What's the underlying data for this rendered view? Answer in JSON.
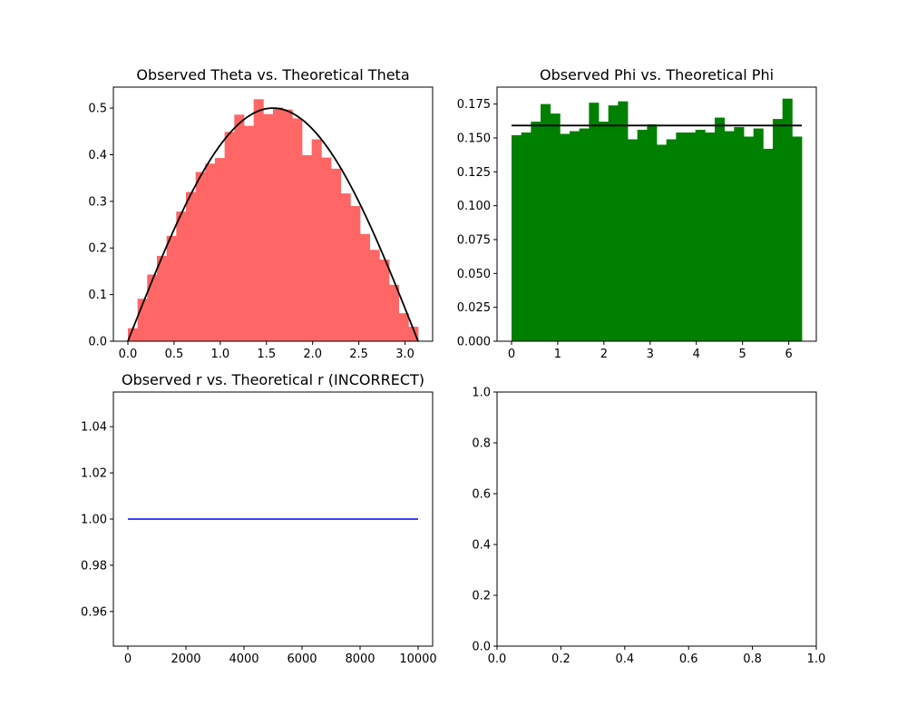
{
  "chart_data": [
    {
      "type": "bar",
      "title": "Observed Theta vs. Theoretical Theta",
      "xlabel": "",
      "ylabel": "",
      "xlim": [
        -0.157,
        3.299
      ],
      "ylim": [
        0,
        0.545
      ],
      "xticks": [
        0.0,
        0.5,
        1.0,
        1.5,
        2.0,
        2.5,
        3.0
      ],
      "xtick_labels": [
        "0.0",
        "0.5",
        "1.0",
        "1.5",
        "2.0",
        "2.5",
        "3.0"
      ],
      "yticks": [
        0.0,
        0.1,
        0.2,
        0.3,
        0.4,
        0.5
      ],
      "ytick_labels": [
        "0.0",
        "0.1",
        "0.2",
        "0.3",
        "0.4",
        "0.5"
      ],
      "grid": false,
      "bins": {
        "start": 0.0,
        "end": 3.1416,
        "values": [
          0.028,
          0.091,
          0.143,
          0.183,
          0.226,
          0.278,
          0.32,
          0.363,
          0.381,
          0.393,
          0.449,
          0.486,
          0.462,
          0.519,
          0.487,
          0.501,
          0.497,
          0.478,
          0.399,
          0.433,
          0.394,
          0.37,
          0.317,
          0.29,
          0.23,
          0.196,
          0.175,
          0.121,
          0.06,
          0.031
        ]
      },
      "bar_color": "#ff6666",
      "curve": {
        "type": "line",
        "function": "0.5*sin(x)",
        "x_range": [
          0.0,
          3.1416
        ],
        "color": "#000000"
      }
    },
    {
      "type": "bar",
      "title": "Observed Phi vs. Theoretical Phi",
      "xlabel": "",
      "ylabel": "",
      "xlim": [
        -0.314,
        6.597
      ],
      "ylim": [
        0,
        0.1875
      ],
      "xticks": [
        0,
        1,
        2,
        3,
        4,
        5,
        6
      ],
      "xtick_labels": [
        "0",
        "1",
        "2",
        "3",
        "4",
        "5",
        "6"
      ],
      "yticks": [
        0.0,
        0.025,
        0.05,
        0.075,
        0.1,
        0.125,
        0.15,
        0.175
      ],
      "ytick_labels": [
        "0.000",
        "0.025",
        "0.050",
        "0.075",
        "0.100",
        "0.125",
        "0.150",
        "0.175"
      ],
      "grid": false,
      "bins": {
        "start": 0.0,
        "end": 6.2832,
        "values": [
          0.152,
          0.154,
          0.162,
          0.175,
          0.168,
          0.153,
          0.155,
          0.157,
          0.176,
          0.162,
          0.174,
          0.177,
          0.149,
          0.156,
          0.16,
          0.145,
          0.149,
          0.154,
          0.154,
          0.156,
          0.154,
          0.165,
          0.155,
          0.158,
          0.151,
          0.157,
          0.142,
          0.164,
          0.179,
          0.151
        ]
      },
      "bar_color": "#008000",
      "curve": {
        "type": "line",
        "function": "1/(2*pi)",
        "x_range": [
          0.0,
          6.2832
        ],
        "color": "#000000"
      }
    },
    {
      "type": "line",
      "title": "Observed r vs. Theoretical r (INCORRECT)",
      "xlabel": "",
      "ylabel": "",
      "xlim": [
        -500,
        10500
      ],
      "ylim": [
        0.945,
        1.055
      ],
      "xticks": [
        0,
        2000,
        4000,
        6000,
        8000,
        10000
      ],
      "xtick_labels": [
        "0",
        "2000",
        "4000",
        "6000",
        "8000",
        "10000"
      ],
      "yticks": [
        0.96,
        0.98,
        1.0,
        1.02,
        1.04
      ],
      "ytick_labels": [
        "0.96",
        "0.98",
        "1.00",
        "1.02",
        "1.04"
      ],
      "grid": false,
      "series": [
        {
          "x": [
            0,
            10000
          ],
          "values": [
            1.0,
            1.0
          ],
          "color": "#0000ff"
        }
      ]
    },
    {
      "type": "line",
      "title": "",
      "xlabel": "",
      "ylabel": "",
      "xlim": [
        0,
        1
      ],
      "ylim": [
        0,
        1
      ],
      "xticks": [
        0.0,
        0.2,
        0.4,
        0.6,
        0.8,
        1.0
      ],
      "xtick_labels": [
        "0.0",
        "0.2",
        "0.4",
        "0.6",
        "0.8",
        "1.0"
      ],
      "yticks": [
        0.0,
        0.2,
        0.4,
        0.6,
        0.8,
        1.0
      ],
      "ytick_labels": [
        "0.0",
        "0.2",
        "0.4",
        "0.6",
        "0.8",
        "1.0"
      ],
      "grid": false,
      "series": []
    }
  ]
}
